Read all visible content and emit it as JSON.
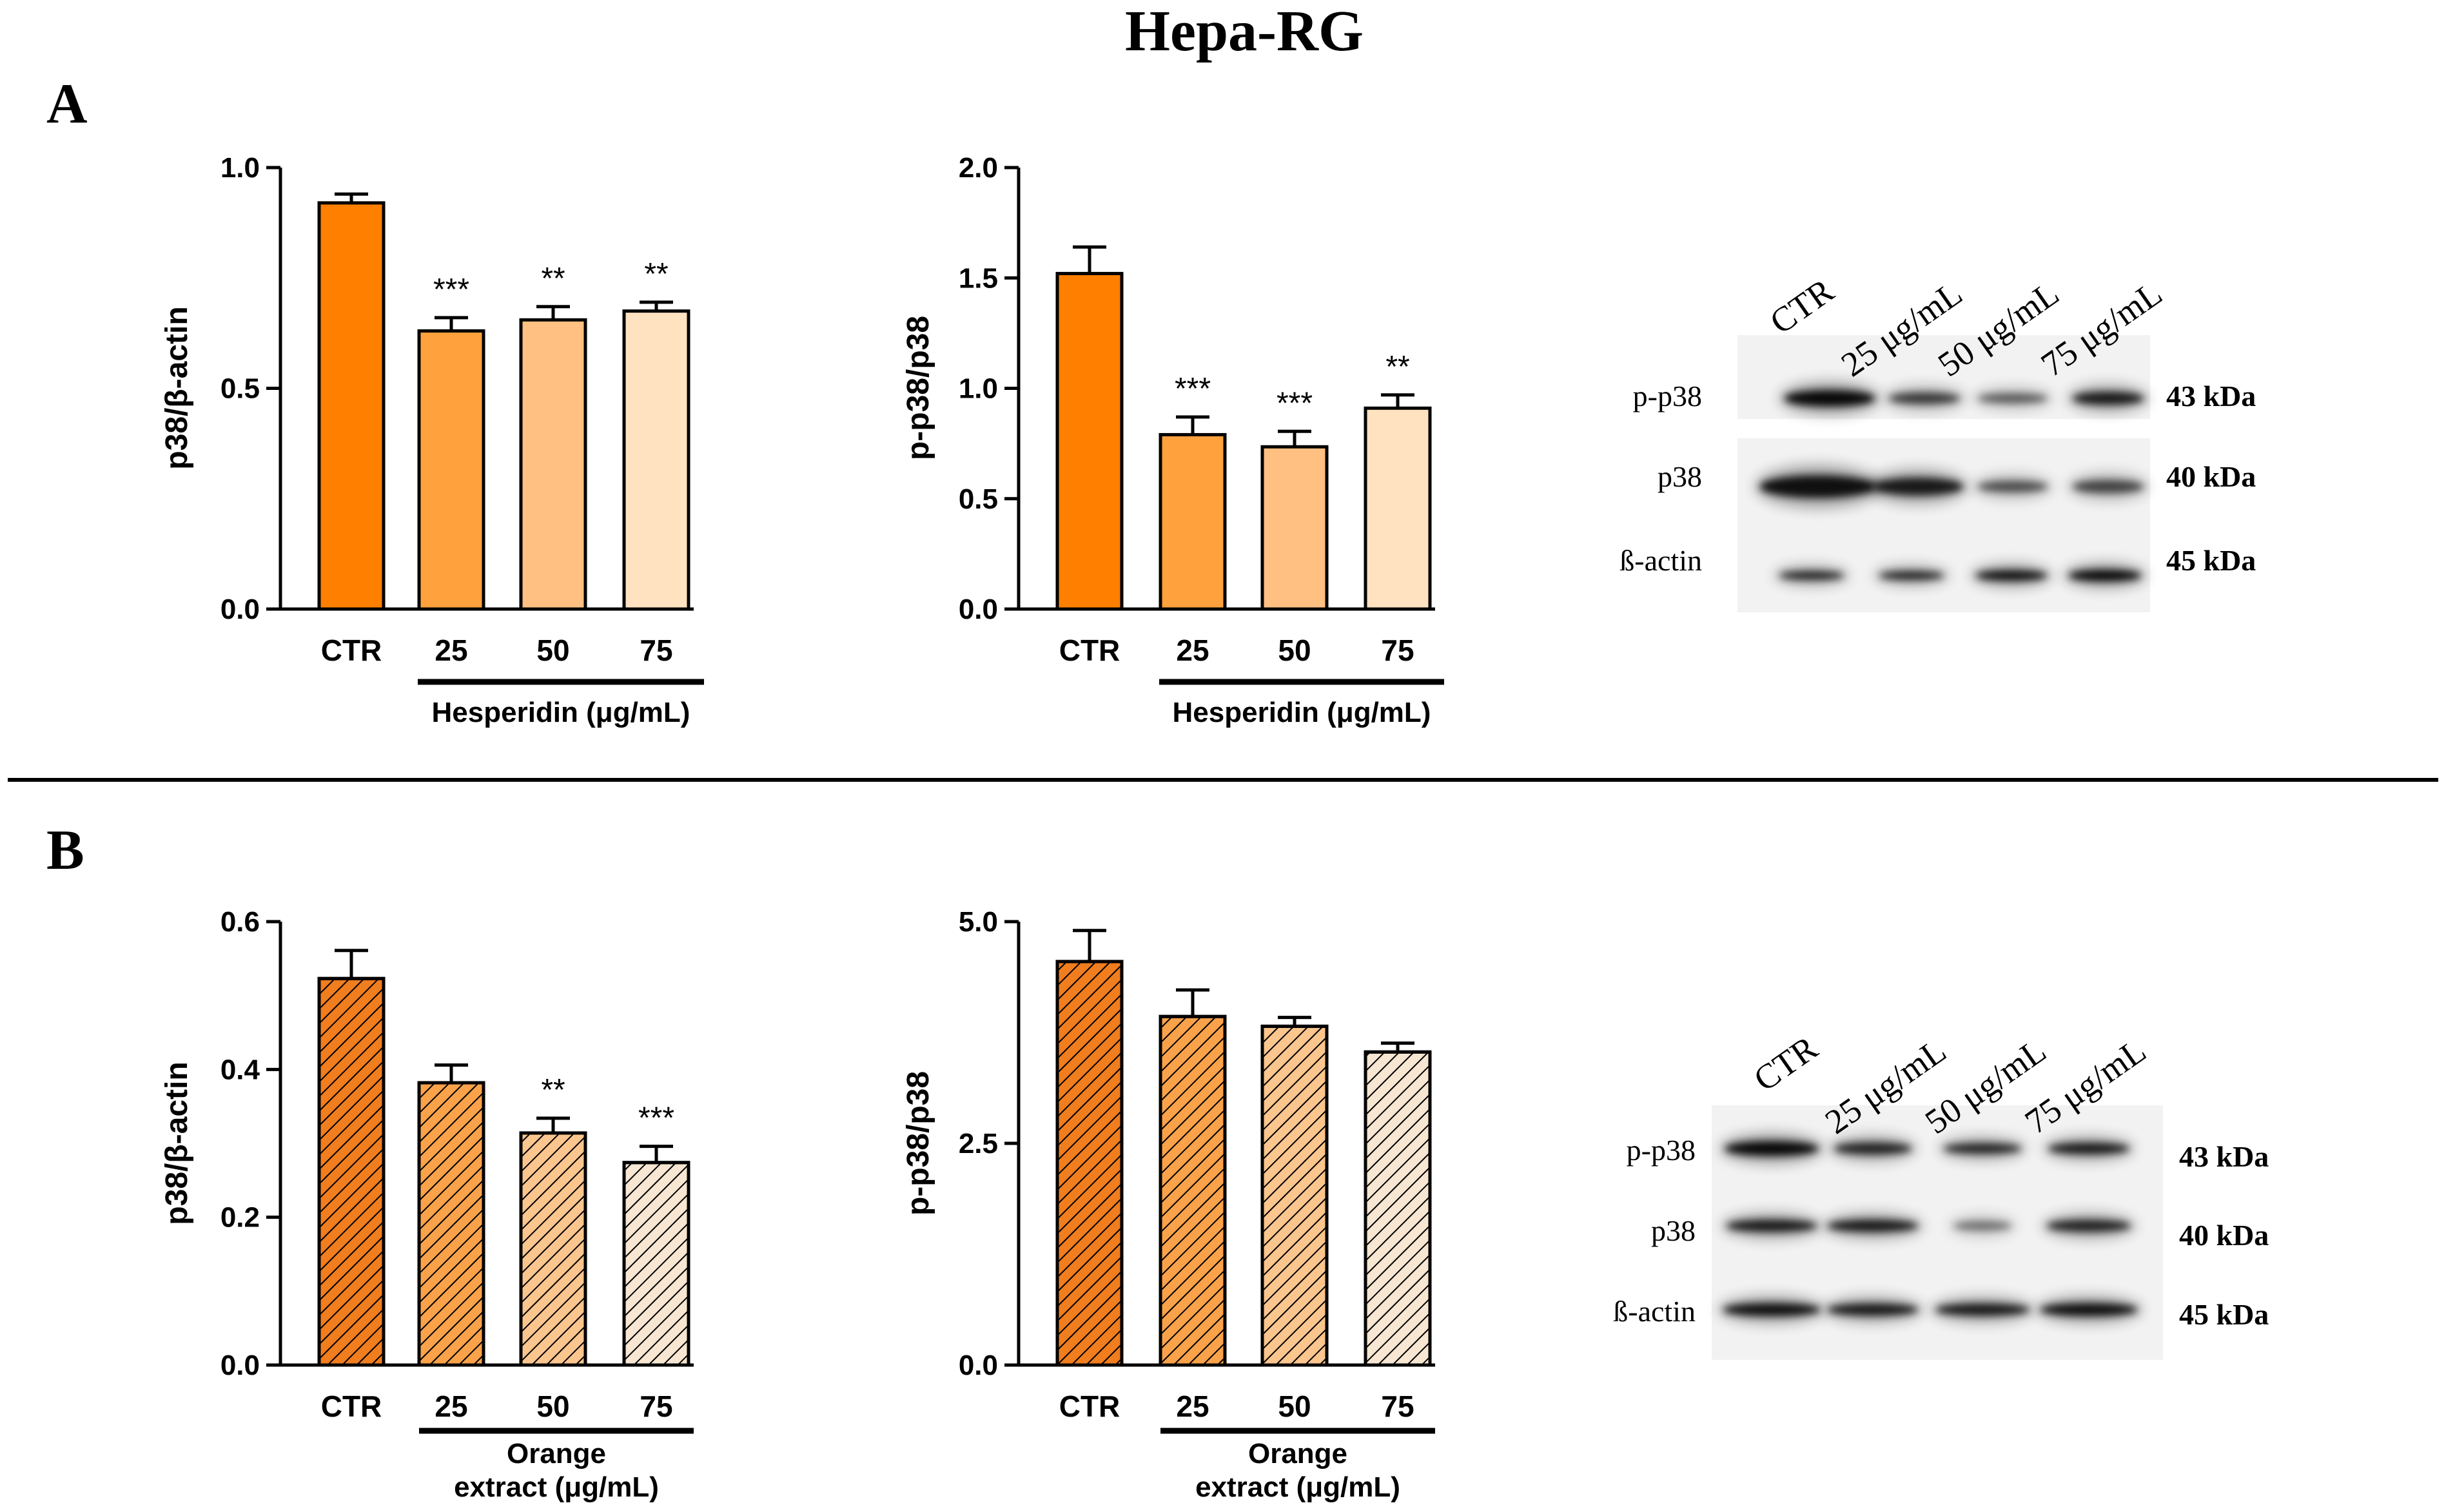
{
  "figure": {
    "title": "Hepa-RG",
    "panel_labels": [
      "A",
      "B"
    ]
  },
  "colors": {
    "ctr": "#FF7F00",
    "c25": "#FFA13C",
    "c50": "#FFC082",
    "c75": "#FFE2C0",
    "b_ctr": "#F07D1E",
    "b_25": "#F9A24A",
    "b_50": "#FBC58E",
    "b_75": "#F6E6D2"
  },
  "chart_data": [
    {
      "id": "A1",
      "type": "bar",
      "categories": [
        "CTR",
        "25",
        "50",
        "75"
      ],
      "values": [
        0.92,
        0.63,
        0.655,
        0.675
      ],
      "errors": [
        0.02,
        0.03,
        0.03,
        0.02
      ],
      "significance": [
        "",
        "***",
        "**",
        "**"
      ],
      "ylabel": "p38/β-actin",
      "xgroup_label": "Hesperidin (μg/mL)",
      "ylim": [
        0,
        1.0
      ],
      "yticks": [
        "0.0",
        "0.5",
        "1.0"
      ],
      "pattern": "solid"
    },
    {
      "id": "A2",
      "type": "bar",
      "categories": [
        "CTR",
        "25",
        "50",
        "75"
      ],
      "values": [
        1.52,
        0.79,
        0.735,
        0.91
      ],
      "errors": [
        0.12,
        0.08,
        0.07,
        0.06
      ],
      "significance": [
        "",
        "***",
        "***",
        "**"
      ],
      "ylabel": "p-p38/p38",
      "xgroup_label": "Hesperidin (μg/mL)",
      "ylim": [
        0,
        2.0
      ],
      "yticks": [
        "0.0",
        "0.5",
        "1.0",
        "1.5",
        "2.0"
      ],
      "pattern": "solid"
    },
    {
      "id": "B1",
      "type": "bar",
      "categories": [
        "CTR",
        "25",
        "50",
        "75"
      ],
      "values": [
        0.523,
        0.382,
        0.314,
        0.274
      ],
      "errors": [
        0.038,
        0.024,
        0.02,
        0.022
      ],
      "significance": [
        "",
        "",
        "**",
        "***"
      ],
      "ylabel": "p38/β-actin",
      "xgroup_label": [
        "Orange",
        "extract (μg/mL)"
      ],
      "ylim": [
        0,
        0.6
      ],
      "yticks": [
        "0.0",
        "0.2",
        "0.4",
        "0.6"
      ],
      "pattern": "hatched"
    },
    {
      "id": "B2",
      "type": "bar",
      "categories": [
        "CTR",
        "25",
        "50",
        "75"
      ],
      "values": [
        4.55,
        3.93,
        3.82,
        3.53
      ],
      "errors": [
        0.35,
        0.3,
        0.1,
        0.1
      ],
      "significance": [
        "",
        "",
        "",
        ""
      ],
      "ylabel": "p-p38/p38",
      "xgroup_label": [
        "Orange",
        "extract (μg/mL)"
      ],
      "ylim": [
        0,
        5.0
      ],
      "yticks": [
        "0.0",
        "2.5",
        "5.0"
      ],
      "pattern": "hatched"
    }
  ],
  "blots": [
    {
      "id": "blotA",
      "lanes": [
        "CTR",
        "25 μg/mL",
        "50 μg/mL",
        "75 μg/mL"
      ],
      "proteins": [
        "p-p38",
        "p38",
        "ß-actin"
      ],
      "sizes": [
        "43 kDa",
        "40 kDa",
        "45 kDa"
      ]
    },
    {
      "id": "blotB",
      "lanes": [
        "CTR",
        "25 μg/mL",
        "50 μg/mL",
        "75 μg/mL"
      ],
      "proteins": [
        "p-p38",
        "p38",
        "ß-actin"
      ],
      "sizes": [
        "43 kDa",
        "40 kDa",
        "45 kDa"
      ]
    }
  ]
}
